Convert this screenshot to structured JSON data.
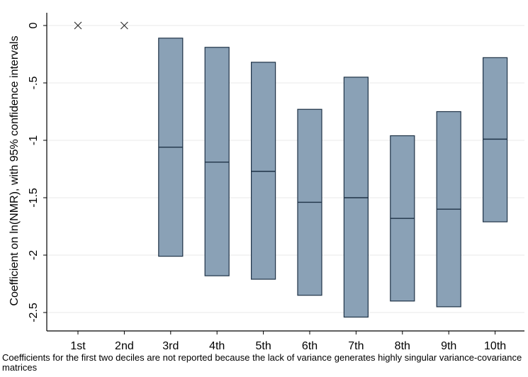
{
  "chart_data": {
    "type": "box",
    "ylabel": "Coefficient on ln(NMR), with 95% confidence intervals",
    "xlabel": "",
    "ylim": [
      -2.65,
      0.12
    ],
    "yticks": [
      0,
      -0.5,
      -1,
      -1.5,
      -2,
      -2.5
    ],
    "ytick_labels": [
      "0",
      "-.5",
      "-1",
      "-1.5",
      "-2",
      "-2.5"
    ],
    "grid": true,
    "categories": [
      "1st",
      "2nd",
      "3rd",
      "4th",
      "5th",
      "6th",
      "7th",
      "8th",
      "9th",
      "10th"
    ],
    "point_estimates": [
      0,
      0,
      -1.06,
      -1.19,
      -1.27,
      -1.54,
      -1.5,
      -1.68,
      -1.6,
      -0.99
    ],
    "ci_upper": [
      null,
      null,
      -0.11,
      -0.19,
      -0.32,
      -0.73,
      -0.45,
      -0.96,
      -0.75,
      -0.28
    ],
    "ci_lower": [
      null,
      null,
      -2.01,
      -2.18,
      -2.21,
      -2.35,
      -2.54,
      -2.4,
      -2.45,
      -1.71
    ],
    "marker_categories": [
      "1st",
      "2nd"
    ],
    "box_color": "#8aa1b6",
    "box_edge_color": "#1f3347",
    "grid_color": "#eaeaea"
  },
  "note": "Coefficients for the first two deciles are not reported because the lack of variance generates highly singular variance-covariance matrices"
}
